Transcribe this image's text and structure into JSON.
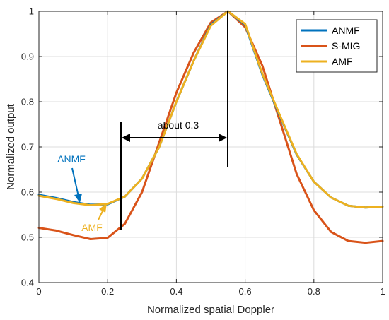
{
  "chart_data": {
    "type": "line",
    "xlabel": "Normalized spatial Doppler",
    "ylabel": "Normalized output",
    "xlim": [
      0,
      1
    ],
    "ylim": [
      0.4,
      1
    ],
    "xticks": [
      0,
      0.2,
      0.4,
      0.6,
      0.8,
      1
    ],
    "xtick_labels": [
      "0",
      "0.2",
      "0.4",
      "0.6",
      "0.8",
      "1"
    ],
    "yticks": [
      0.4,
      0.5,
      0.6,
      0.7,
      0.8,
      0.9,
      1
    ],
    "ytick_labels": [
      "0.4",
      "0.5",
      "0.6",
      "0.7",
      "0.8",
      "0.9",
      "1"
    ],
    "grid": true,
    "legend_position": "top-right",
    "x": [
      0,
      0.05,
      0.1,
      0.15,
      0.2,
      0.25,
      0.3,
      0.35,
      0.4,
      0.45,
      0.5,
      0.55,
      0.6,
      0.65,
      0.7,
      0.75,
      0.8,
      0.85,
      0.9,
      0.95,
      1
    ],
    "series": [
      {
        "name": "ANMF",
        "color": "#0072BD",
        "values": [
          0.594,
          0.587,
          0.578,
          0.572,
          0.573,
          0.59,
          0.63,
          0.7,
          0.8,
          0.89,
          0.97,
          1.0,
          0.97,
          0.86,
          0.77,
          0.683,
          0.623,
          0.588,
          0.57,
          0.566,
          0.568
        ]
      },
      {
        "name": "S-MIG",
        "color": "#D95319",
        "values": [
          0.521,
          0.515,
          0.505,
          0.496,
          0.499,
          0.53,
          0.6,
          0.71,
          0.82,
          0.908,
          0.975,
          1.0,
          0.965,
          0.88,
          0.76,
          0.64,
          0.56,
          0.512,
          0.492,
          0.488,
          0.492
        ]
      },
      {
        "name": "AMF",
        "color": "#EDB120",
        "values": [
          0.592,
          0.585,
          0.576,
          0.571,
          0.574,
          0.59,
          0.63,
          0.7,
          0.8,
          0.89,
          0.968,
          1.0,
          0.972,
          0.862,
          0.772,
          0.684,
          0.623,
          0.588,
          0.57,
          0.566,
          0.568
        ]
      }
    ],
    "annotations": [
      {
        "text": "about 0.3",
        "color": "#000000"
      },
      {
        "text": "ANMF",
        "color": "#0072BD"
      },
      {
        "text": "AMF",
        "color": "#EDB120"
      }
    ]
  }
}
